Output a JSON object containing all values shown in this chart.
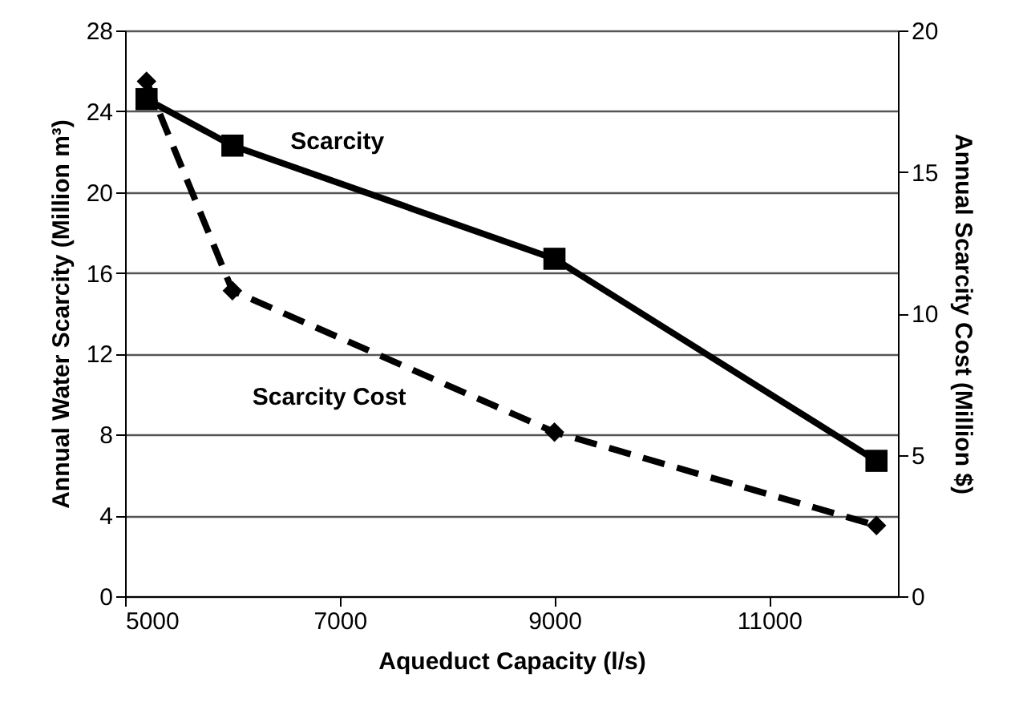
{
  "chart_data": {
    "type": "line",
    "xlabel": "Aqueduct Capacity (l/s)",
    "ylabel": "Annual Water Scarcity (Million m³)",
    "y2label": "Annual Scarcity Cost (Million $)",
    "x": [
      5200,
      6000,
      9000,
      12000
    ],
    "series": [
      {
        "name": "Scarcity",
        "color": "#000000",
        "values": [
          24.6,
          22.3,
          16.7,
          6.7
        ],
        "marker": "square",
        "line_style": "solid"
      },
      {
        "name": "Scarcity Cost",
        "color": "#000000",
        "values": [
          18.2,
          10.8,
          5.8,
          2.5
        ],
        "marker": "diamond",
        "line_style": "dashed",
        "axis": "y2"
      }
    ],
    "xlim": [
      5000,
      12200
    ],
    "xticks": [
      5000,
      7000,
      9000,
      11000
    ],
    "ylim": [
      0,
      28
    ],
    "yticks": [
      0,
      4,
      8,
      12,
      16,
      20,
      24,
      28
    ],
    "y2lim": [
      0,
      20
    ],
    "y2ticks": [
      0,
      5,
      10,
      15,
      20
    ],
    "grid": "y"
  }
}
